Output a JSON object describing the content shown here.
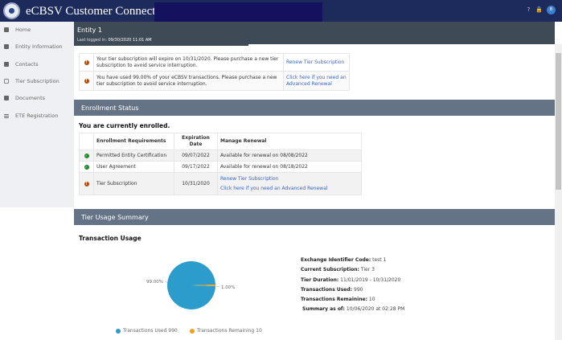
{
  "header": {
    "title": "eCBSV Customer Connection",
    "avatar_initial": "B",
    "icons": [
      "help-icon",
      "lock-icon"
    ]
  },
  "sidebar": {
    "items": [
      {
        "label": "Home",
        "icon": "home-icon"
      },
      {
        "label": "Entity Information",
        "icon": "building-icon"
      },
      {
        "label": "Contacts",
        "icon": "contact-card-icon"
      },
      {
        "label": "Tier Subscription",
        "icon": "bookmark-icon"
      },
      {
        "label": "Documents",
        "icon": "document-icon"
      },
      {
        "label": "ETE Registration",
        "icon": "list-icon"
      }
    ]
  },
  "entity": {
    "name": "Entity 1",
    "last_logged_label": "Last logged in:",
    "last_logged_value": "09/30/2020 11:01 AM"
  },
  "alerts": [
    {
      "message": "Your tier subscription will expire on 10/31/2020. Please purchase a new tier subscription to avoid service interruption.",
      "link": "Renew Tier Subscription"
    },
    {
      "message": "You have used 99.00% of your eCBSV transactions. Please purchase a new tier subscription to avoid service interruption.",
      "link": "Click here if you need an Advanced Renewal"
    }
  ],
  "enrollment": {
    "title": "Enrollment Status",
    "status": "You are currently enrolled.",
    "columns": [
      "Enrollment Requirements",
      "Expiration Date",
      "Manage Renewal"
    ],
    "rows": [
      {
        "status": "ok",
        "requirement": "Permitted Entity Certification",
        "expiration": "09/07/2022",
        "renewal": "Available for renewal on 08/08/2022"
      },
      {
        "status": "ok",
        "requirement": "User Agreement",
        "expiration": "09/17/2022",
        "renewal": "Available for renewal on 08/18/2022"
      },
      {
        "status": "warning",
        "requirement": "Tier Subscription",
        "expiration": "10/31/2020",
        "link1": "Renew Tier Subscription",
        "link2": "Click here if you need an Advanced Renewal"
      }
    ]
  },
  "usage": {
    "title": "Tier Usage Summary",
    "subtitle": "Transaction Usage",
    "info": [
      {
        "label": "Exchange Identifier Code:",
        "value": "test 1"
      },
      {
        "label": "Current Subscription:",
        "value": "Tier 3"
      },
      {
        "label": "Tier Duration:",
        "value": "11/01/2019 - 10/31/2020"
      },
      {
        "label": "Transactions Used:",
        "value": "990"
      },
      {
        "label": "Transactions Remainine:",
        "value": "10"
      },
      {
        "label": "Summary as of:",
        "value": "10/06/2020 at 02:28 PM"
      }
    ]
  },
  "chart_data": {
    "type": "pie",
    "slices": [
      {
        "name": "Transactions Used 990",
        "value": 990,
        "percent_label": "99.00%",
        "color": "#2b9ccc"
      },
      {
        "name": "Transactions Remaining 10",
        "value": 10,
        "percent_label": "1.00%",
        "color": "#f0a018"
      }
    ],
    "legend": "bottom"
  }
}
